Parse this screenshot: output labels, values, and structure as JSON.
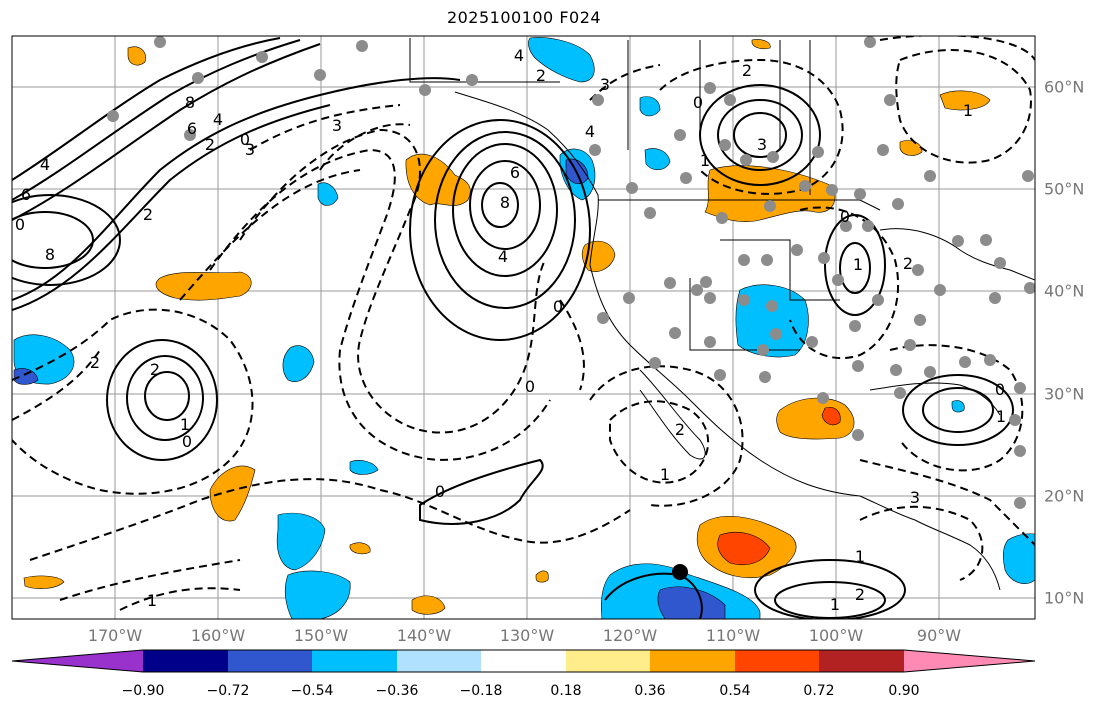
{
  "title": "2025100100 F024",
  "map": {
    "lon_labels": [
      "170°W",
      "160°W",
      "150°W",
      "140°W",
      "130°W",
      "120°W",
      "110°W",
      "100°W",
      "90°W"
    ],
    "lat_labels": [
      "60°N",
      "50°N",
      "40°N",
      "30°N",
      "20°N",
      "10°N"
    ],
    "gridline_color": "#9a9a9a",
    "label_color": "#777777",
    "station_marker_color": "#8c8c8c"
  },
  "contour_labels": [
    "8",
    "6",
    "4",
    "2",
    "0",
    "8",
    "6",
    "4",
    "2",
    "0",
    "2",
    "1",
    "0",
    "1",
    "8",
    "6",
    "4",
    "0",
    "3",
    "2",
    "3",
    "4",
    "2",
    "0",
    "3",
    "4",
    "1",
    "0",
    "2",
    "1",
    "0",
    "1",
    "1",
    "2",
    "0",
    "2",
    "1",
    "3",
    "0",
    "1",
    "1",
    "2",
    "3"
  ],
  "colorbar": {
    "colors": [
      "#9932cc",
      "#00008b",
      "#3157cf",
      "#00bfff",
      "#b0e2ff",
      "#ffffff",
      "#ffec8b",
      "#ffa500",
      "#ff4500",
      "#b22222",
      "#ff8ab4"
    ],
    "tick_labels": [
      "−0.90",
      "−0.72",
      "−0.54",
      "−0.36",
      "−0.18",
      "0.18",
      "0.36",
      "0.54",
      "0.72",
      "0.90"
    ]
  }
}
